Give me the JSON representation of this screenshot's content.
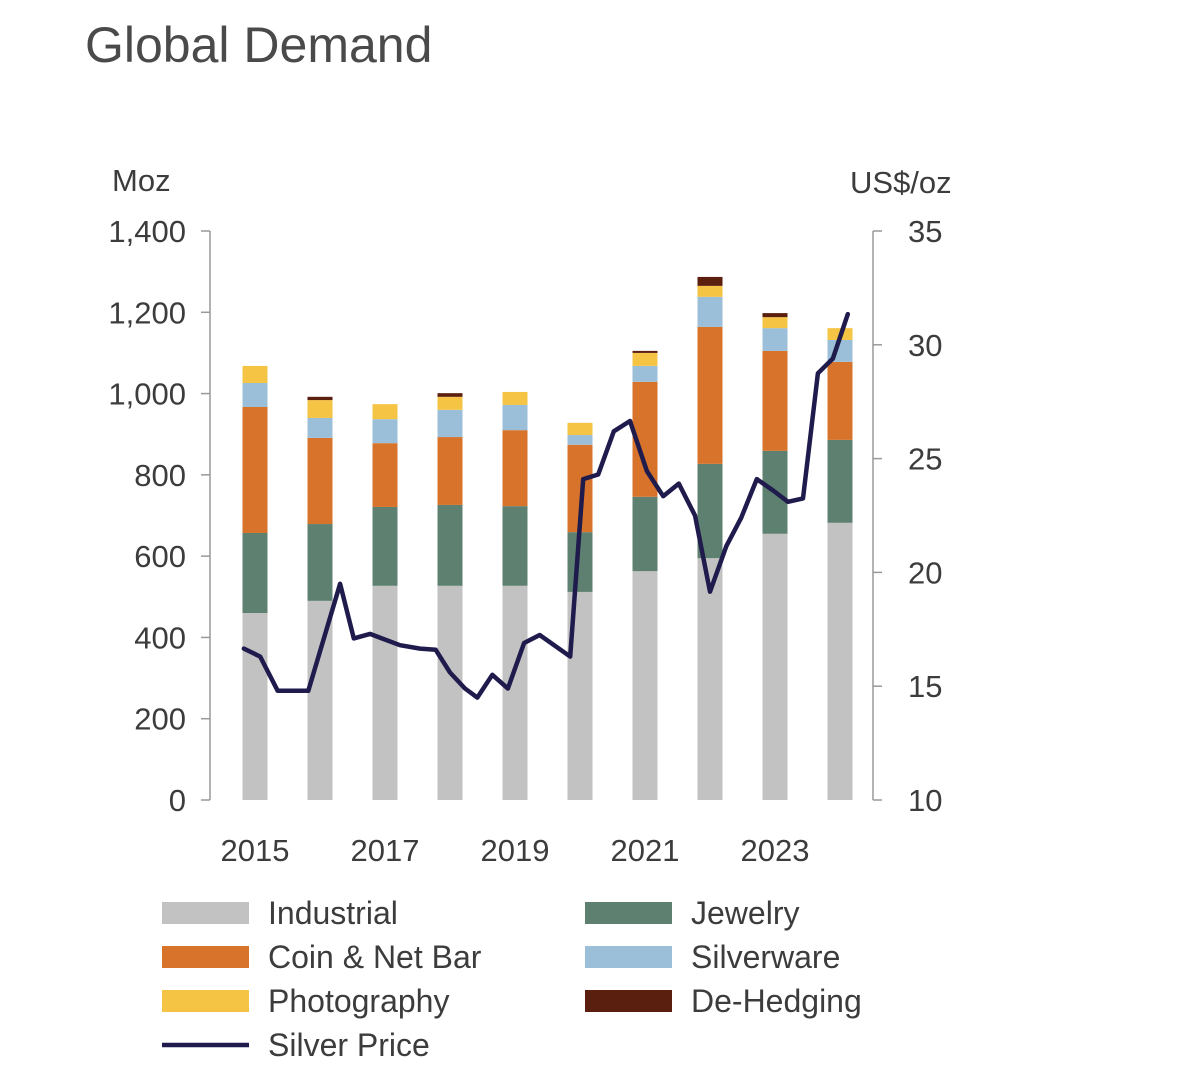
{
  "chart_data": {
    "type": "bar",
    "stacked": true,
    "title": "Global Demand",
    "ylabel": "Moz",
    "y2label": "US$/oz",
    "ylim": [
      0,
      1400
    ],
    "y2lim": [
      10,
      35
    ],
    "yticks": [
      "0",
      "200",
      "400",
      "600",
      "800",
      "1,000",
      "1,200",
      "1,400"
    ],
    "y2ticks": [
      "10",
      "15",
      "20",
      "25",
      "30",
      "35"
    ],
    "xticks": [
      "2015",
      "2017",
      "2019",
      "2021",
      "2023"
    ],
    "grid": false,
    "legend_position": "bottom",
    "categories": [
      2015,
      2016,
      2017,
      2018,
      2019,
      2020,
      2021,
      2022,
      2023,
      2024
    ],
    "series": [
      {
        "name": "Industrial",
        "color": "#c2c2c2",
        "values": [
          460,
          490,
          527,
          527,
          527,
          512,
          563,
          595,
          655,
          682
        ]
      },
      {
        "name": "Jewelry",
        "color": "#5e8070",
        "values": [
          197,
          189,
          194,
          199,
          196,
          147,
          183,
          232,
          204,
          204
        ]
      },
      {
        "name": "Coin & Net Bar",
        "color": "#d8732c",
        "values": [
          310,
          212,
          157,
          167,
          187,
          215,
          283,
          337,
          246,
          192
        ]
      },
      {
        "name": "Silverware",
        "color": "#9bbfd8",
        "values": [
          59,
          49,
          59,
          67,
          62,
          24,
          39,
          74,
          56,
          54
        ]
      },
      {
        "name": "Photography",
        "color": "#f6c445",
        "values": [
          42,
          44,
          37,
          32,
          32,
          30,
          32,
          27,
          27,
          29
        ]
      },
      {
        "name": "De-Hedging",
        "color": "#5b1f0f",
        "values": [
          0,
          8,
          0,
          9,
          0,
          0,
          5,
          22,
          10,
          0
        ]
      }
    ],
    "line": {
      "name": "Silver Price",
      "color": "#1f1c4d",
      "axis": "right",
      "x": [
        2014.83,
        2015.08,
        2015.35,
        2015.82,
        2016.31,
        2016.52,
        2016.77,
        2017.23,
        2017.54,
        2017.78,
        2018.0,
        2018.23,
        2018.42,
        2018.65,
        2018.89,
        2019.14,
        2019.38,
        2019.85,
        2020.05,
        2020.28,
        2020.52,
        2020.77,
        2021.03,
        2021.28,
        2021.52,
        2021.77,
        2022.0,
        2022.25,
        2022.48,
        2022.72,
        2022.97,
        2023.2,
        2023.43,
        2023.66,
        2023.89,
        2024.12
      ],
      "y": [
        16.65,
        16.3,
        14.8,
        14.8,
        19.5,
        17.1,
        17.3,
        16.8,
        16.65,
        16.6,
        15.6,
        14.9,
        14.5,
        15.5,
        14.9,
        16.9,
        17.25,
        16.3,
        24.1,
        24.3,
        26.2,
        26.65,
        24.45,
        23.35,
        23.9,
        22.5,
        19.15,
        21.15,
        22.4,
        24.1,
        23.6,
        23.1,
        23.25,
        28.75,
        29.4,
        31.35
      ]
    }
  }
}
